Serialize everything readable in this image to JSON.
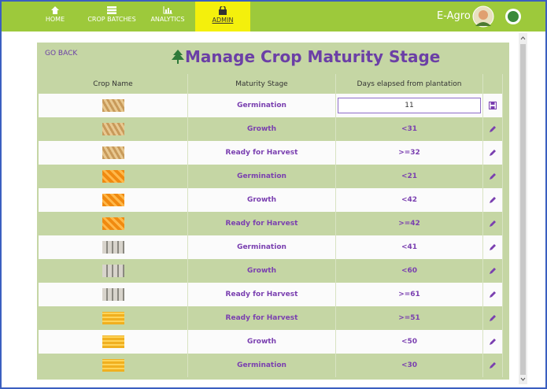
{
  "nav": {
    "items": [
      "HOME",
      "CROP BATCHES",
      "ANALYTICS",
      "ADMIN"
    ],
    "brand": "E-Agro"
  },
  "page": {
    "back": "GO BACK",
    "title": "Manage Crop Maturity Stage"
  },
  "table": {
    "headers": [
      "Crop Name",
      "Maturity Stage",
      "Days elapsed from plantation"
    ],
    "rows": [
      [
        "Germination",
        "11"
      ],
      [
        "Growth",
        "<31"
      ],
      [
        "Ready for Harvest",
        ">=32"
      ],
      [
        "Germination",
        "<21"
      ],
      [
        "Growth",
        "<42"
      ],
      [
        "Ready for Harvest",
        ">=42"
      ],
      [
        "Germination",
        "<41"
      ],
      [
        "Growth",
        "<60"
      ],
      [
        "Ready for Harvest",
        ">=61"
      ],
      [
        "Ready for Harvest",
        ">=51"
      ],
      [
        "Growth",
        "<50"
      ],
      [
        "Germination",
        "<30"
      ]
    ]
  }
}
